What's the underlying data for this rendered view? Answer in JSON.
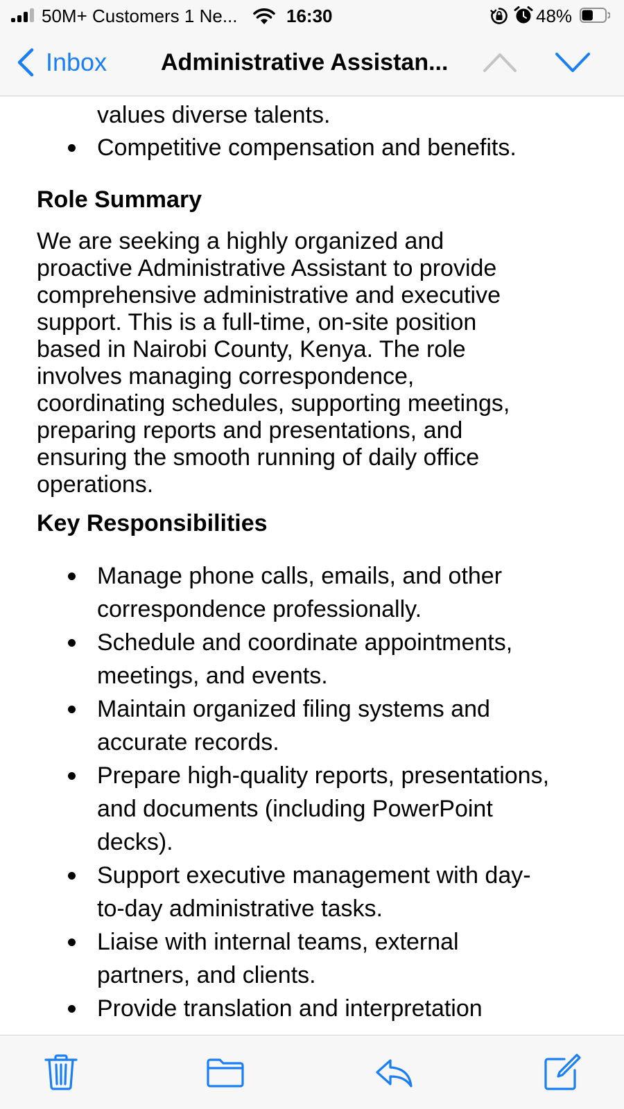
{
  "status_bar": {
    "carrier": "50M+ Customers 1 Ne...",
    "time": "16:30",
    "battery_percent": "48%",
    "battery_level": 0.48,
    "signal_bars": 3
  },
  "nav": {
    "back_label": "Inbox",
    "title": "Administrative Assistan...",
    "prev_enabled": false,
    "next_enabled": true
  },
  "email": {
    "top_list": {
      "continuation": "values diverse talents.",
      "items": [
        "Competitive compensation and benefits."
      ]
    },
    "role_summary": {
      "heading": "Role Summary",
      "lines": [
        "We are seeking a highly organized and",
        "proactive Administrative Assistant to provide",
        "comprehensive administrative and executive",
        "support. This is a full-time, on-site position",
        "based in Nairobi County, Kenya. The role",
        "involves managing correspondence,",
        "coordinating schedules, supporting meetings,",
        "preparing reports and presentations, and",
        "ensuring the smooth running of daily office",
        "operations."
      ]
    },
    "key_responsibilities": {
      "heading": "Key Responsibilities",
      "items": [
        {
          "lines": [
            "Manage phone calls, emails, and other",
            "correspondence professionally."
          ]
        },
        {
          "lines": [
            "Schedule and coordinate appointments,",
            "meetings, and events."
          ]
        },
        {
          "lines": [
            "Maintain organized filing systems and",
            "accurate records."
          ]
        },
        {
          "lines": [
            "Prepare high-quality reports, presentations,",
            "and documents (including PowerPoint",
            "decks)."
          ]
        },
        {
          "lines": [
            "Support executive management with day-",
            "to-day administrative tasks."
          ]
        },
        {
          "lines": [
            "Liaise with internal teams, external",
            "partners, and clients."
          ]
        },
        {
          "lines": [
            "Provide translation and interpretation"
          ]
        }
      ]
    }
  },
  "toolbar": {
    "buttons": [
      {
        "name": "trash-button",
        "icon": "trash-icon"
      },
      {
        "name": "move-to-folder-button",
        "icon": "folder-icon"
      },
      {
        "name": "reply-button",
        "icon": "reply-icon"
      },
      {
        "name": "compose-button",
        "icon": "compose-icon"
      }
    ]
  },
  "colors": {
    "accent": "#1a7ef5",
    "disabled": "#c4c4c4",
    "bar_background": "#f7f7f7"
  }
}
